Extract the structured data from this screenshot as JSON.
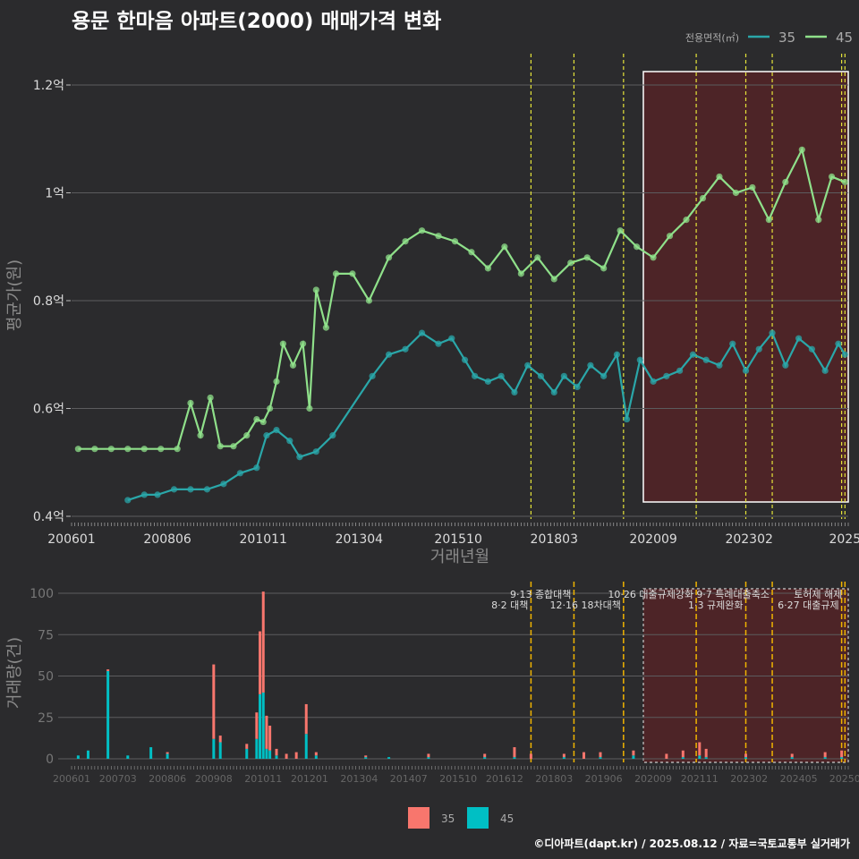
{
  "title": "용문 한마음 아파트(2000) 매매가격 변화",
  "caption": "©디아파트(dapt.kr) / 2025.08.12 / 자료=국토교통부 실거래가",
  "colors": {
    "background": "#2b2b2d",
    "series_35_line": "#2aa7a9",
    "series_45_line": "#8fe08a",
    "bar_35": "#f8766d",
    "bar_45": "#00bfc4",
    "policy_line_top": "#e5e43a",
    "policy_line_bottom": "#f0b400",
    "highlight_fill": "#5a2326",
    "highlight_border": "#ffffff",
    "outlier_marker": "#e11d1d"
  },
  "chart_data": [
    {
      "type": "line",
      "title": "",
      "xlabel": "거래년월",
      "ylabel": "평균가(원)",
      "ylim": [
        0.4,
        1.24
      ],
      "y_unit": "억",
      "ytick_labels": [
        "0.4억",
        "0.6억",
        "0.8억",
        "1억",
        "1.2억"
      ],
      "ytick_values": [
        0.4,
        0.6,
        0.8,
        1.0,
        1.2
      ],
      "xtick_labels": [
        "200601",
        "200806",
        "201011",
        "201304",
        "201510",
        "201803",
        "202009",
        "202302",
        "2025"
      ],
      "legend_title": "전용면적(㎡)",
      "legend_position": "top-right",
      "grid": true,
      "highlight_period": {
        "from": "2020-06",
        "to": "2025-08"
      },
      "policy_dates": [
        "2017-08",
        "2018-09",
        "2019-12",
        "2021-10",
        "2023-01",
        "2023-09",
        "2025-06",
        "2025-07"
      ],
      "series": [
        {
          "name": "35",
          "points": [
            [
              "2007-06",
              0.43
            ],
            [
              "2007-11",
              0.44
            ],
            [
              "2008-03",
              0.44
            ],
            [
              "2008-08",
              0.45
            ],
            [
              "2009-01",
              0.45
            ],
            [
              "2009-06",
              0.45
            ],
            [
              "2009-11",
              0.46
            ],
            [
              "2010-04",
              0.48
            ],
            [
              "2010-09",
              0.49
            ],
            [
              "2010-12",
              0.55
            ],
            [
              "2011-03",
              0.56
            ],
            [
              "2011-07",
              0.54
            ],
            [
              "2011-10",
              0.51
            ],
            [
              "2012-03",
              0.52
            ],
            [
              "2012-08",
              0.55
            ],
            [
              "2013-08",
              0.66
            ],
            [
              "2014-01",
              0.7
            ],
            [
              "2014-06",
              0.71
            ],
            [
              "2014-11",
              0.74
            ],
            [
              "2015-04",
              0.72
            ],
            [
              "2015-08",
              0.73
            ],
            [
              "2015-12",
              0.69
            ],
            [
              "2016-03",
              0.66
            ],
            [
              "2016-07",
              0.65
            ],
            [
              "2016-11",
              0.66
            ],
            [
              "2017-03",
              0.63
            ],
            [
              "2017-07",
              0.68
            ],
            [
              "2017-11",
              0.66
            ],
            [
              "2018-03",
              0.63
            ],
            [
              "2018-06",
              0.66
            ],
            [
              "2018-10",
              0.64
            ],
            [
              "2019-02",
              0.68
            ],
            [
              "2019-06",
              0.66
            ],
            [
              "2019-10",
              0.7
            ],
            [
              "2020-01",
              0.58
            ],
            [
              "2020-05",
              0.69
            ],
            [
              "2020-09",
              0.65
            ],
            [
              "2021-01",
              0.66
            ],
            [
              "2021-05",
              0.67
            ],
            [
              "2021-09",
              0.7
            ],
            [
              "2022-01",
              0.69
            ],
            [
              "2022-05",
              0.68
            ],
            [
              "2022-09",
              0.72
            ],
            [
              "2023-01",
              0.67
            ],
            [
              "2023-05",
              0.71
            ],
            [
              "2023-09",
              0.74
            ],
            [
              "2024-01",
              0.68
            ],
            [
              "2024-05",
              0.73
            ],
            [
              "2024-09",
              0.71
            ],
            [
              "2025-01",
              0.67
            ],
            [
              "2025-05",
              0.72
            ],
            [
              "2025-07",
              0.7
            ]
          ]
        },
        {
          "name": "45",
          "points": [
            [
              "2006-03",
              0.525
            ],
            [
              "2006-08",
              0.525
            ],
            [
              "2007-01",
              0.525
            ],
            [
              "2007-06",
              0.525
            ],
            [
              "2007-11",
              0.525
            ],
            [
              "2008-04",
              0.525
            ],
            [
              "2008-09",
              0.525
            ],
            [
              "2009-01",
              0.61
            ],
            [
              "2009-04",
              0.55
            ],
            [
              "2009-07",
              0.62
            ],
            [
              "2009-10",
              0.53
            ],
            [
              "2010-02",
              0.53
            ],
            [
              "2010-06",
              0.55
            ],
            [
              "2010-09",
              0.58
            ],
            [
              "2010-11",
              0.575
            ],
            [
              "2011-01",
              0.6
            ],
            [
              "2011-03",
              0.65
            ],
            [
              "2011-05",
              0.72
            ],
            [
              "2011-08",
              0.68
            ],
            [
              "2011-11",
              0.72
            ],
            [
              "2012-01",
              0.6
            ],
            [
              "2012-03",
              0.82
            ],
            [
              "2012-06",
              0.75
            ],
            [
              "2012-09",
              0.85
            ],
            [
              "2013-02",
              0.85
            ],
            [
              "2013-07",
              0.8
            ],
            [
              "2014-01",
              0.88
            ],
            [
              "2014-06",
              0.91
            ],
            [
              "2014-11",
              0.93
            ],
            [
              "2015-04",
              0.92
            ],
            [
              "2015-09",
              0.91
            ],
            [
              "2016-02",
              0.89
            ],
            [
              "2016-07",
              0.86
            ],
            [
              "2016-12",
              0.9
            ],
            [
              "2017-05",
              0.85
            ],
            [
              "2017-10",
              0.88
            ],
            [
              "2018-03",
              0.84
            ],
            [
              "2018-08",
              0.87
            ],
            [
              "2019-01",
              0.88
            ],
            [
              "2019-06",
              0.86
            ],
            [
              "2019-11",
              0.93
            ],
            [
              "2020-04",
              0.9
            ],
            [
              "2020-09",
              0.88
            ],
            [
              "2021-02",
              0.92
            ],
            [
              "2021-07",
              0.95
            ],
            [
              "2021-12",
              0.99
            ],
            [
              "2022-05",
              1.03
            ],
            [
              "2022-10",
              1.0
            ],
            [
              "2023-03",
              1.01
            ],
            [
              "2023-08",
              0.95
            ],
            [
              "2024-01",
              1.02
            ],
            [
              "2024-06",
              1.08
            ],
            [
              "2024-11",
              0.95
            ],
            [
              "2025-03",
              1.03
            ],
            [
              "2025-07",
              1.02
            ]
          ]
        }
      ]
    },
    {
      "type": "bar",
      "title": "",
      "xlabel": "",
      "ylabel": "거래량(건)",
      "ylim": [
        0,
        105
      ],
      "ytick_values": [
        0,
        25,
        50,
        75,
        100
      ],
      "xtick_labels": [
        "200601",
        "200703",
        "200806",
        "200908",
        "201011",
        "201201",
        "201304",
        "201407",
        "201510",
        "201612",
        "201803",
        "201906",
        "202009",
        "202111",
        "202302",
        "202405",
        "20250"
      ],
      "stacked": true,
      "legend_position": "bottom",
      "legend_entries": [
        "35",
        "45"
      ],
      "policy_annotations": [
        {
          "date": "2017-08",
          "label": "8·2 대책"
        },
        {
          "date": "2018-09",
          "label": "9·13 종합대책"
        },
        {
          "date": "2019-12",
          "label": "12·16 18차대책"
        },
        {
          "date": "2021-10",
          "label": "10·26 대출규제강화"
        },
        {
          "date": "2023-01",
          "label": "1·3 규제완화"
        },
        {
          "date": "2023-09",
          "label": "9·7 특례대출축소"
        },
        {
          "date": "2025-06",
          "label": "6·27 대출규제"
        },
        {
          "date": "2025-07",
          "label": "토허제 해제"
        }
      ],
      "series": [
        {
          "name": "35",
          "points": [
            [
              "2006-03",
              0
            ],
            [
              "2006-12",
              1
            ],
            [
              "2008-06",
              1
            ],
            [
              "2009-08",
              45
            ],
            [
              "2009-10",
              4
            ],
            [
              "2010-06",
              3
            ],
            [
              "2010-09",
              16
            ],
            [
              "2010-10",
              38
            ],
            [
              "2010-11",
              61
            ],
            [
              "2010-12",
              20
            ],
            [
              "2011-01",
              15
            ],
            [
              "2011-03",
              4
            ],
            [
              "2011-06",
              3
            ],
            [
              "2011-09",
              4
            ],
            [
              "2011-12",
              18
            ],
            [
              "2012-03",
              2
            ],
            [
              "2013-06",
              1
            ],
            [
              "2015-01",
              2
            ],
            [
              "2016-06",
              2
            ],
            [
              "2017-03",
              6
            ],
            [
              "2017-08",
              3
            ],
            [
              "2018-06",
              2
            ],
            [
              "2018-12",
              4
            ],
            [
              "2019-05",
              3
            ],
            [
              "2020-03",
              3
            ],
            [
              "2021-01",
              3
            ],
            [
              "2021-06",
              4
            ],
            [
              "2021-11",
              8
            ],
            [
              "2022-01",
              5
            ],
            [
              "2023-01",
              2
            ],
            [
              "2024-03",
              2
            ],
            [
              "2025-01",
              3
            ],
            [
              "2025-06",
              4
            ]
          ]
        },
        {
          "name": "45",
          "points": [
            [
              "2006-03",
              2
            ],
            [
              "2006-06",
              5
            ],
            [
              "2006-12",
              53
            ],
            [
              "2007-06",
              2
            ],
            [
              "2008-01",
              7
            ],
            [
              "2008-06",
              3
            ],
            [
              "2009-08",
              12
            ],
            [
              "2009-10",
              10
            ],
            [
              "2010-06",
              6
            ],
            [
              "2010-09",
              12
            ],
            [
              "2010-10",
              39
            ],
            [
              "2010-11",
              40
            ],
            [
              "2010-12",
              6
            ],
            [
              "2011-01",
              5
            ],
            [
              "2011-03",
              2
            ],
            [
              "2011-12",
              15
            ],
            [
              "2012-03",
              2
            ],
            [
              "2013-06",
              1
            ],
            [
              "2014-01",
              1
            ],
            [
              "2015-01",
              1
            ],
            [
              "2016-06",
              1
            ],
            [
              "2017-03",
              1
            ],
            [
              "2018-06",
              1
            ],
            [
              "2019-05",
              1
            ],
            [
              "2020-03",
              2
            ],
            [
              "2021-06",
              1
            ],
            [
              "2021-11",
              2
            ],
            [
              "2022-01",
              1
            ],
            [
              "2023-01",
              1
            ],
            [
              "2024-03",
              1
            ],
            [
              "2025-01",
              1
            ],
            [
              "2025-06",
              1
            ]
          ]
        }
      ]
    }
  ]
}
